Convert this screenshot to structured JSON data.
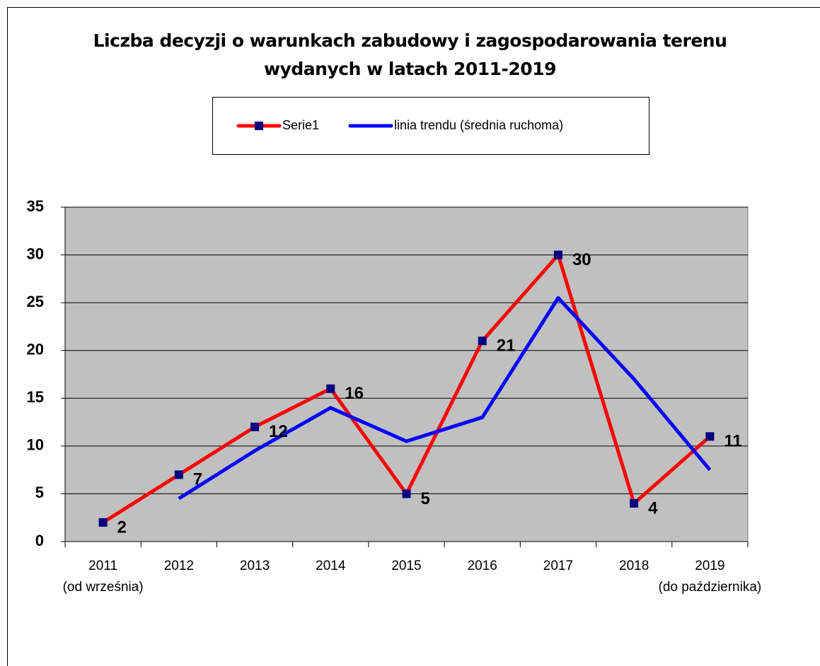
{
  "chart_data": {
    "type": "line",
    "title": "Liczba decyzji o warunkach zabudowy i zagospodarowania terenu\nwydanych w latach 2011-2019",
    "categories": [
      "2011\n(od września)",
      "2012",
      "2013",
      "2014",
      "2015",
      "2016",
      "2017",
      "2018",
      "2019\n(do października)"
    ],
    "series": [
      {
        "name": "Serie1",
        "color": "#ff0000",
        "marker_color": "#000080",
        "values": [
          2,
          7,
          12,
          16,
          5,
          21,
          30,
          4,
          11
        ]
      },
      {
        "name": "linia trendu (średnia ruchoma)",
        "color": "#0000ff",
        "values": [
          null,
          4.5,
          9.5,
          14,
          10.5,
          13,
          25.5,
          17,
          7.5
        ]
      }
    ],
    "ylim": [
      0,
      35
    ],
    "yticks": [
      0,
      5,
      10,
      15,
      20,
      25,
      30,
      35
    ],
    "grid": true,
    "plot_background": "#c0c0c0"
  }
}
